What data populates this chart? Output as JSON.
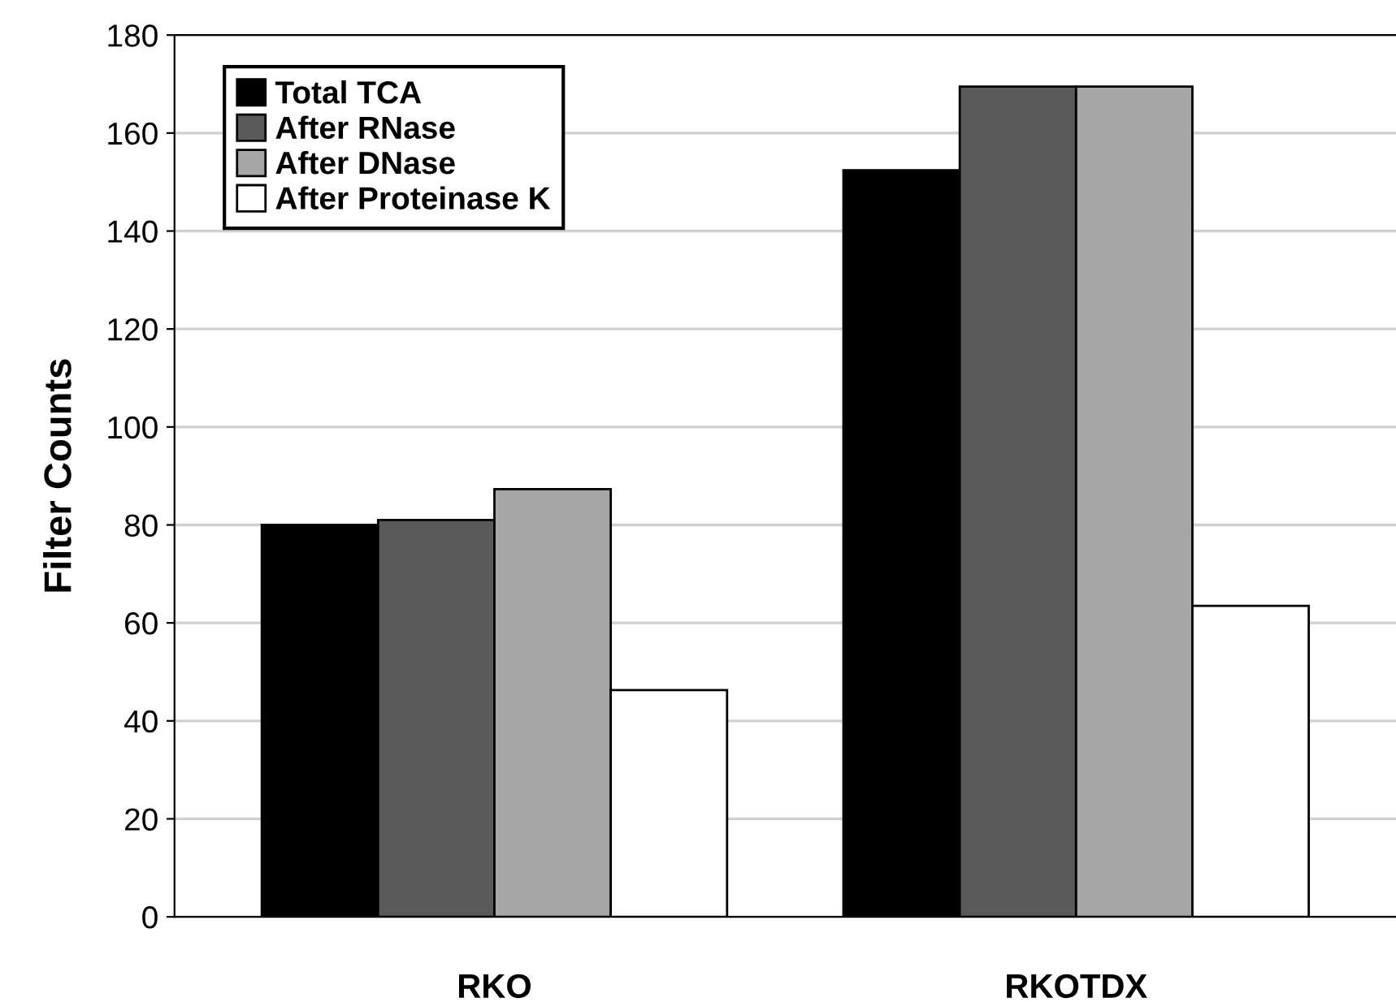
{
  "chart_data": {
    "type": "bar",
    "ylabel": "Filter Counts",
    "categories": [
      "RKO",
      "RKOTDX"
    ],
    "series": [
      {
        "name": "Total TCA",
        "color": "#000000",
        "values": [
          80,
          152.4
        ]
      },
      {
        "name": "After RNase",
        "color": "#5a5a5a",
        "values": [
          81,
          169.5
        ]
      },
      {
        "name": "After DNase",
        "color": "#a6a6a6",
        "values": [
          87.3,
          169.5
        ]
      },
      {
        "name": "After Proteinase K",
        "color": "#ffffff",
        "values": [
          46.3,
          63.5
        ]
      }
    ],
    "ylim": [
      0,
      180
    ],
    "yticks": [
      0,
      20,
      40,
      60,
      80,
      100,
      120,
      140,
      160,
      180
    ],
    "grid": "y",
    "legend": "top left"
  }
}
